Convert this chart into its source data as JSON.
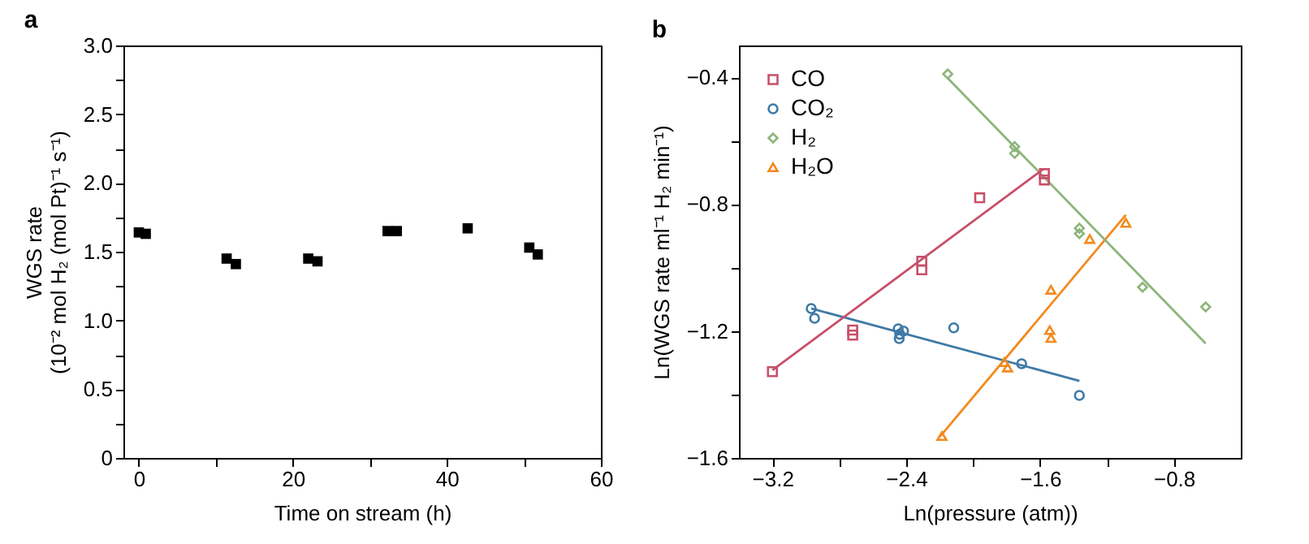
{
  "chart_data": [
    {
      "type": "scatter",
      "title": "a",
      "xlabel": "Time on stream (h)",
      "ylabel": "WGS rate\n(10⁻² mol H₂ (mol Pt)⁻¹ s⁻¹)",
      "xlim": [
        -2,
        60
      ],
      "ylim": [
        0,
        3.0
      ],
      "xticks": [
        0,
        {
          "value": 10,
          "label": null
        },
        20,
        {
          "value": 30,
          "label": null
        },
        40,
        {
          "value": 50,
          "label": null
        },
        60
      ],
      "yticks": [
        {
          "value": 0,
          "label": "0"
        },
        {
          "value": 0.25,
          "label": null
        },
        {
          "value": 0.5,
          "label": "0.5"
        },
        {
          "value": 0.75,
          "label": null
        },
        {
          "value": 1.0,
          "label": "1.0"
        },
        {
          "value": 1.25,
          "label": null
        },
        {
          "value": 1.5,
          "label": "1.5"
        },
        {
          "value": 1.75,
          "label": null
        },
        {
          "value": 2.0,
          "label": "2.0"
        },
        {
          "value": 2.25,
          "label": null
        },
        {
          "value": 2.5,
          "label": "2.5"
        },
        {
          "value": 2.75,
          "label": null
        },
        {
          "value": 3.0,
          "label": "3.0"
        }
      ],
      "grid": false,
      "marker": "square",
      "series": [
        {
          "color": "#000000",
          "x": [
            0,
            0.9,
            11.4,
            12.6,
            22.0,
            23.2,
            32.3,
            33.5,
            42.7,
            50.7,
            51.8
          ],
          "values": [
            1.64,
            1.63,
            1.45,
            1.41,
            1.45,
            1.43,
            1.65,
            1.65,
            1.67,
            1.53,
            1.48
          ]
        }
      ]
    },
    {
      "type": "scatter",
      "title": "b",
      "xlabel": "Ln(pressure (atm))",
      "ylabel": "Ln(WGS rate ml⁻¹ H₂ min⁻¹)",
      "xlim": [
        -3.4,
        -0.4
      ],
      "ylim": [
        -1.6,
        -0.3
      ],
      "xticks": [
        {
          "value": -3.2,
          "label": "−3.2"
        },
        {
          "value": -2.8,
          "label": null
        },
        {
          "value": -2.4,
          "label": "−2.4"
        },
        {
          "value": -2.0,
          "label": null
        },
        {
          "value": -1.6,
          "label": "−1.6"
        },
        {
          "value": -1.2,
          "label": null
        },
        {
          "value": -0.8,
          "label": "−0.8"
        }
      ],
      "yticks": [
        {
          "value": -1.6,
          "label": "−1.6"
        },
        {
          "value": -1.4,
          "label": null
        },
        {
          "value": -1.2,
          "label": "−1.2"
        },
        {
          "value": -1.0,
          "label": null
        },
        {
          "value": -0.8,
          "label": "−0.8"
        },
        {
          "value": -0.6,
          "label": null
        },
        {
          "value": -0.4,
          "label": "−0.4"
        }
      ],
      "grid": false,
      "legend": "top left",
      "series": [
        {
          "name": "CO",
          "marker": "square",
          "color": "#c8506a",
          "x": [
            -3.2,
            -2.72,
            -2.72,
            -2.307,
            -2.307,
            -1.961,
            -1.574,
            -1.574
          ],
          "values": [
            -1.328,
            -1.197,
            -1.213,
            -0.98,
            -1.007,
            -0.78,
            -0.704,
            -0.724
          ]
        },
        {
          "name": "CO₂",
          "marker": "circle",
          "color": "#3f7aa6",
          "x": [
            -2.968,
            -2.948,
            -2.448,
            -2.439,
            -2.442,
            -2.416,
            -2.116,
            -1.71,
            -1.365
          ],
          "values": [
            -1.129,
            -1.16,
            -1.193,
            -1.21,
            -1.224,
            -1.2,
            -1.19,
            -1.303,
            -1.403
          ]
        },
        {
          "name": "H₂",
          "marker": "diamond",
          "color": "#8db57a",
          "x": [
            -2.152,
            -1.752,
            -1.752,
            -1.365,
            -1.365,
            -0.987,
            -0.61
          ],
          "values": [
            -0.39,
            -0.619,
            -0.64,
            -0.876,
            -0.893,
            -1.062,
            -1.124
          ]
        },
        {
          "name": "H₂O",
          "marker": "triangle",
          "color": "#f28a1e",
          "x": [
            -2.187,
            -1.813,
            -1.794,
            -1.535,
            -1.542,
            -1.535,
            -1.303,
            -1.087
          ],
          "values": [
            -1.531,
            -1.298,
            -1.315,
            -1.07,
            -1.197,
            -1.222,
            -0.91,
            -0.859
          ]
        },
        {
          "type": "line",
          "color": "#c8506a",
          "x": [
            -3.2,
            -1.581
          ],
          "values": [
            -1.323,
            -0.69
          ]
        },
        {
          "type": "line",
          "color": "#3f7aa6",
          "x": [
            -2.968,
            -1.365
          ],
          "values": [
            -1.129,
            -1.357
          ]
        },
        {
          "type": "line",
          "color": "#8db57a",
          "x": [
            -2.152,
            -0.61
          ],
          "values": [
            -0.403,
            -1.239
          ]
        },
        {
          "type": "line",
          "color": "#f28a1e",
          "x": [
            -2.2,
            -1.087
          ],
          "values": [
            -1.534,
            -0.834
          ]
        }
      ]
    }
  ]
}
